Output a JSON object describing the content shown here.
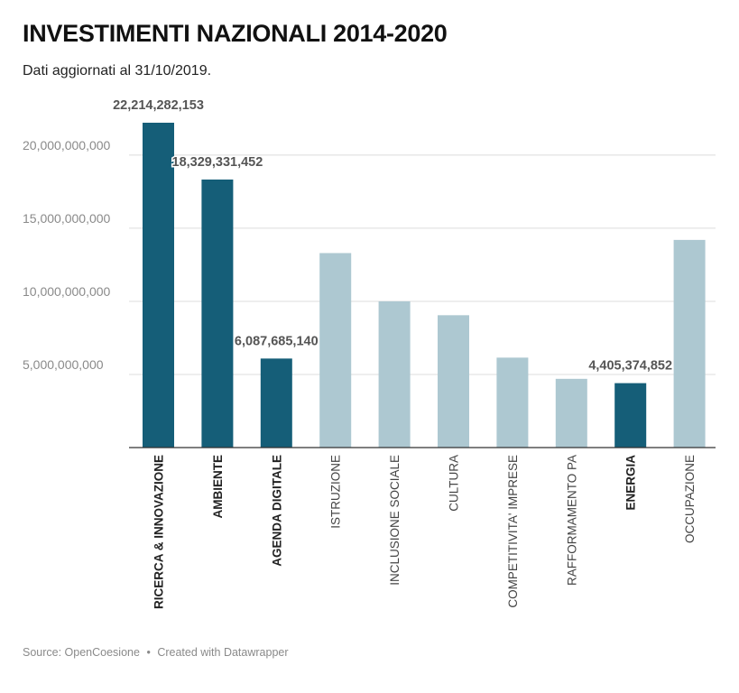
{
  "header": {
    "title": "INVESTIMENTI NAZIONALI 2014-2020",
    "subtitle": "Dati aggiornati al 31/10/2019."
  },
  "footer": {
    "source": "Source: OpenCoesione",
    "separator": "•",
    "credit": "Created with Datawrapper"
  },
  "colors": {
    "highlight": "#155e78",
    "muted": "#adc8d1",
    "grid": "#dcdcdc",
    "axis": "#333333",
    "tick_text": "#8a8a8a",
    "label_text": "#555555"
  },
  "chart_data": {
    "type": "bar",
    "categories": [
      "RICERCA & INNOVAZIONE",
      "AMBIENTE",
      "AGENDA DIGITALE",
      "ISTRUZIONE",
      "INCLUSIONE SOCIALE",
      "CULTURA",
      "COMPETITIVITA' IMPRESE",
      "RAFFORMAMENTO PA",
      "ENERGIA",
      "OCCUPAZIONE"
    ],
    "values": [
      22214282153,
      18329331452,
      6087685140,
      13300000000,
      10000000000,
      9050000000,
      6150000000,
      4700000000,
      4405374852,
      14200000000
    ],
    "highlighted": [
      true,
      true,
      true,
      false,
      false,
      false,
      false,
      false,
      true,
      false
    ],
    "data_labels": [
      "22,214,282,153",
      "18,329,331,452",
      "6,087,685,140",
      "",
      "",
      "",
      "",
      "",
      "4,405,374,852",
      ""
    ],
    "y_ticks": [
      5000000000,
      10000000000,
      15000000000,
      20000000000
    ],
    "y_tick_labels": [
      "5,000,000,000",
      "10,000,000,000",
      "15,000,000,000",
      "20,000,000,000"
    ],
    "ylim": [
      0,
      22214282153
    ],
    "grid": true
  }
}
